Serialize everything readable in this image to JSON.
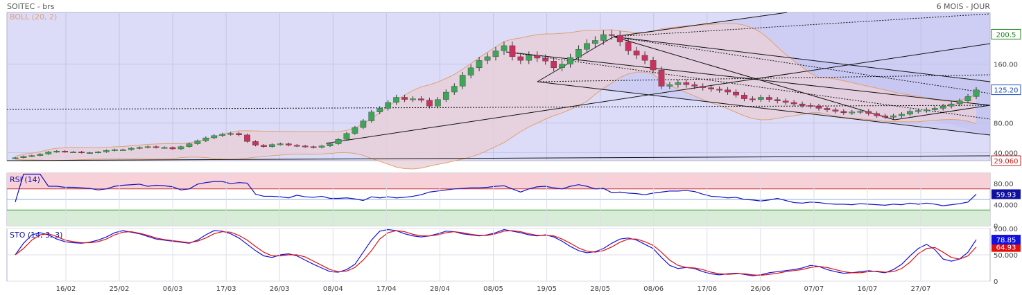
{
  "header": {
    "title": "SOITEC - brs",
    "period": "6 MOIS - JOUR"
  },
  "colors": {
    "up": "#3fa35a",
    "down": "#c8325e",
    "boll_line": "#e0a070",
    "boll_fill": "#e8d0d8",
    "panel_bg": "#dcdcf8",
    "trend_fill": "#c0c0f0",
    "rsi_line": "#1010c0",
    "sto_k": "#1010e0",
    "sto_d": "#e01010",
    "rsi_overbought": "#f8d0d8",
    "rsi_oversold": "#d8ecd8"
  },
  "x_labels": [
    "16/02",
    "25/02",
    "06/03",
    "17/03",
    "26/03",
    "08/04",
    "17/04",
    "28/04",
    "08/05",
    "19/05",
    "28/05",
    "08/06",
    "17/06",
    "26/06",
    "07/07",
    "16/07",
    "27/07"
  ],
  "chart_data": [
    {
      "type": "candlestick",
      "title": "SOITEC - brs",
      "indicator": "BOLL (20, 2)",
      "ylim": [
        29.06,
        230
      ],
      "y_ticks": [
        40.0,
        80.0,
        160.0
      ],
      "y_tick_labels": [
        "40.000",
        "80.00",
        "160.00"
      ],
      "markers": [
        {
          "label": "200.5",
          "value": 200.5,
          "color": "#208020"
        },
        {
          "label": "125.20",
          "value": 125.2,
          "color": "#2050c0"
        },
        {
          "label": "29.060",
          "value": 29.06,
          "color": "#c02020"
        }
      ],
      "close": [
        33,
        35,
        36,
        38,
        41,
        42,
        41,
        41,
        40,
        40,
        41,
        43,
        44,
        44,
        46,
        47,
        48,
        47,
        47,
        45,
        48,
        52,
        56,
        60,
        63,
        65,
        66,
        64,
        55,
        50,
        48,
        51,
        52,
        50,
        49,
        48,
        47,
        49,
        52,
        58,
        66,
        74,
        83,
        95,
        100,
        108,
        115,
        112,
        113,
        111,
        103,
        112,
        122,
        130,
        145,
        155,
        165,
        170,
        178,
        185,
        170,
        165,
        172,
        168,
        164,
        155,
        160,
        169,
        180,
        188,
        192,
        200,
        199,
        190,
        178,
        172,
        165,
        152,
        130,
        132,
        135,
        132,
        130,
        128,
        126,
        125,
        122,
        118,
        113,
        112,
        115,
        112,
        110,
        108,
        106,
        104,
        103,
        100,
        98,
        96,
        94,
        95,
        96,
        93,
        90,
        88,
        90,
        92,
        96,
        97,
        98,
        100,
        103,
        106,
        110,
        116,
        125
      ],
      "grid": true
    },
    {
      "type": "line",
      "title": "RSI (14)",
      "ylim": [
        0,
        100
      ],
      "y_ticks": [
        0,
        40,
        80
      ],
      "y_tick_labels": [
        "0",
        "40.000",
        "80.00"
      ],
      "bands": [
        70,
        30
      ],
      "marker": {
        "label": "59.93",
        "value": 59.93
      },
      "values": [
        45,
        98,
        98,
        98,
        75,
        75,
        73,
        73,
        72,
        71,
        68,
        70,
        75,
        77,
        78,
        79,
        75,
        77,
        76,
        74,
        68,
        70,
        79,
        82,
        84,
        84,
        80,
        82,
        81,
        60,
        56,
        56,
        55,
        53,
        58,
        55,
        54,
        56,
        52,
        52,
        53,
        51,
        48,
        55,
        53,
        55,
        53,
        54,
        56,
        59,
        64,
        66,
        68,
        70,
        71,
        72,
        72,
        73,
        75,
        76,
        70,
        64,
        70,
        74,
        75,
        72,
        70,
        75,
        78,
        75,
        70,
        71,
        63,
        64,
        62,
        61,
        59,
        62,
        64,
        66,
        66,
        67,
        65,
        60,
        56,
        55,
        53,
        54,
        50,
        49,
        47,
        49,
        52,
        48,
        44,
        43,
        45,
        44,
        42,
        41,
        41,
        40,
        42,
        41,
        40,
        39,
        41,
        40,
        43,
        41,
        43,
        41,
        38,
        40,
        42,
        45,
        59.93
      ],
      "grid": true
    },
    {
      "type": "line",
      "title": "STO (14, 3, 3)",
      "ylim": [
        0,
        100
      ],
      "y_ticks": [
        0,
        50,
        100
      ],
      "y_tick_labels": [
        "0",
        "50.000",
        "100.00"
      ],
      "markers": [
        {
          "label": "78.85",
          "value": 78.85,
          "color": "#1010e0"
        },
        {
          "label": "64.93",
          "value": 64.93,
          "color": "#e01010"
        }
      ],
      "series": [
        {
          "name": "%K",
          "values": [
            50,
            72,
            88,
            92,
            88,
            80,
            75,
            73,
            72,
            74,
            78,
            84,
            92,
            96,
            93,
            90,
            85,
            80,
            78,
            76,
            74,
            72,
            78,
            88,
            96,
            95,
            90,
            82,
            70,
            58,
            48,
            45,
            50,
            52,
            48,
            40,
            32,
            25,
            18,
            17,
            22,
            32,
            55,
            78,
            95,
            98,
            96,
            90,
            86,
            84,
            86,
            90,
            95,
            94,
            90,
            88,
            86,
            88,
            92,
            98,
            95,
            92,
            88,
            86,
            88,
            84,
            76,
            66,
            58,
            54,
            56,
            62,
            72,
            80,
            82,
            78,
            70,
            62,
            45,
            30,
            24,
            26,
            24,
            18,
            14,
            12,
            14,
            15,
            13,
            10,
            12,
            16,
            18,
            20,
            22,
            25,
            30,
            28,
            22,
            18,
            15,
            16,
            18,
            20,
            18,
            16,
            22,
            32,
            48,
            62,
            70,
            60,
            42,
            38,
            42,
            55,
            78.85
          ]
        },
        {
          "name": "%D",
          "values": [
            50,
            62,
            78,
            88,
            90,
            85,
            78,
            75,
            73,
            73,
            75,
            80,
            88,
            93,
            94,
            91,
            87,
            82,
            79,
            77,
            75,
            73,
            76,
            82,
            90,
            94,
            93,
            87,
            78,
            66,
            55,
            48,
            48,
            50,
            50,
            46,
            38,
            30,
            22,
            18,
            19,
            26,
            40,
            58,
            80,
            92,
            96,
            94,
            89,
            86,
            86,
            88,
            92,
            94,
            92,
            89,
            87,
            87,
            90,
            95,
            96,
            94,
            90,
            87,
            87,
            86,
            80,
            72,
            63,
            57,
            55,
            58,
            65,
            74,
            80,
            80,
            75,
            68,
            55,
            40,
            30,
            26,
            25,
            22,
            17,
            14,
            13,
            14,
            14,
            12,
            11,
            13,
            15,
            18,
            20,
            22,
            26,
            28,
            26,
            22,
            18,
            16,
            16,
            18,
            19,
            17,
            18,
            24,
            36,
            52,
            62,
            64,
            55,
            45,
            42,
            48,
            64.93
          ]
        }
      ],
      "grid": true
    }
  ]
}
